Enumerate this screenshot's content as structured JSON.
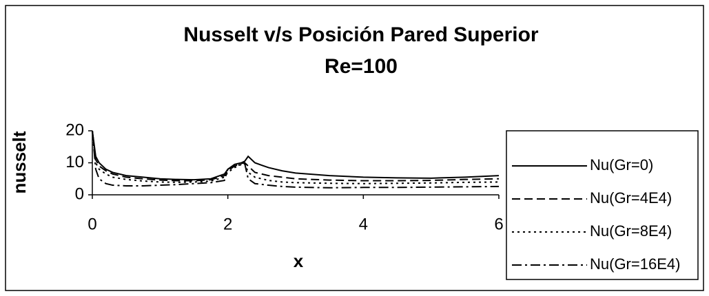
{
  "chart_data": {
    "type": "line",
    "title": "Nusselt v/s Posición Pared Superior",
    "subtitle": "Re=100",
    "x_label": "x",
    "y_label": "nusselt",
    "x": [
      0,
      0.05,
      0.1,
      0.2,
      0.3,
      0.5,
      0.75,
      1,
      1.25,
      1.5,
      1.75,
      1.95,
      2.0,
      2.1,
      2.2,
      2.25,
      2.3,
      2.4,
      2.6,
      2.8,
      3,
      3.5,
      4,
      4.5,
      5,
      5.5,
      6
    ],
    "series": [
      {
        "name": "Nu(Gr=0)",
        "color": "#000000",
        "dash": "none",
        "values": [
          20,
          12,
          10,
          8,
          7,
          6,
          5.5,
          5,
          4.8,
          4.7,
          5,
          6.5,
          8,
          9.5,
          10,
          10.5,
          12,
          10,
          8.5,
          7.5,
          6.8,
          6,
          5.5,
          5.3,
          5.2,
          5.5,
          6
        ]
      },
      {
        "name": "Nu(Gr=4E4)",
        "color": "#000000",
        "dash": "12,6",
        "values": [
          20,
          11,
          9,
          7.5,
          6.5,
          5.5,
          5,
          4.6,
          4.4,
          4.4,
          4.7,
          6,
          7.5,
          9,
          9.8,
          10,
          9,
          7,
          6,
          5.5,
          5,
          4.6,
          4.4,
          4.4,
          4.5,
          4.8,
          5
        ]
      },
      {
        "name": "Nu(Gr=8E4)",
        "color": "#000000",
        "dash": "3,5",
        "values": [
          20,
          10,
          8,
          6.5,
          5.5,
          4.8,
          4.3,
          4,
          3.9,
          4,
          4.3,
          5.5,
          7,
          8.5,
          9.5,
          9.8,
          7,
          5.5,
          4.5,
          4,
          3.8,
          3.6,
          3.5,
          3.6,
          3.7,
          3.9,
          4
        ]
      },
      {
        "name": "Nu(Gr=16E4)",
        "color": "#000000",
        "dash": "14,5,3,5",
        "values": [
          20,
          8,
          5,
          3.5,
          3,
          2.8,
          2.8,
          3,
          3.2,
          3.5,
          3.8,
          4.5,
          8,
          9,
          9.5,
          9.7,
          5,
          3.5,
          3,
          2.6,
          2.4,
          2.2,
          2.3,
          2.3,
          2.4,
          2.5,
          2.6
        ]
      }
    ],
    "xlim": [
      0,
      6
    ],
    "xticks": [
      0,
      2,
      4,
      6
    ],
    "ylim": [
      0,
      20
    ],
    "yticks": [
      0,
      10,
      20
    ],
    "grid": false,
    "legend": "right"
  }
}
